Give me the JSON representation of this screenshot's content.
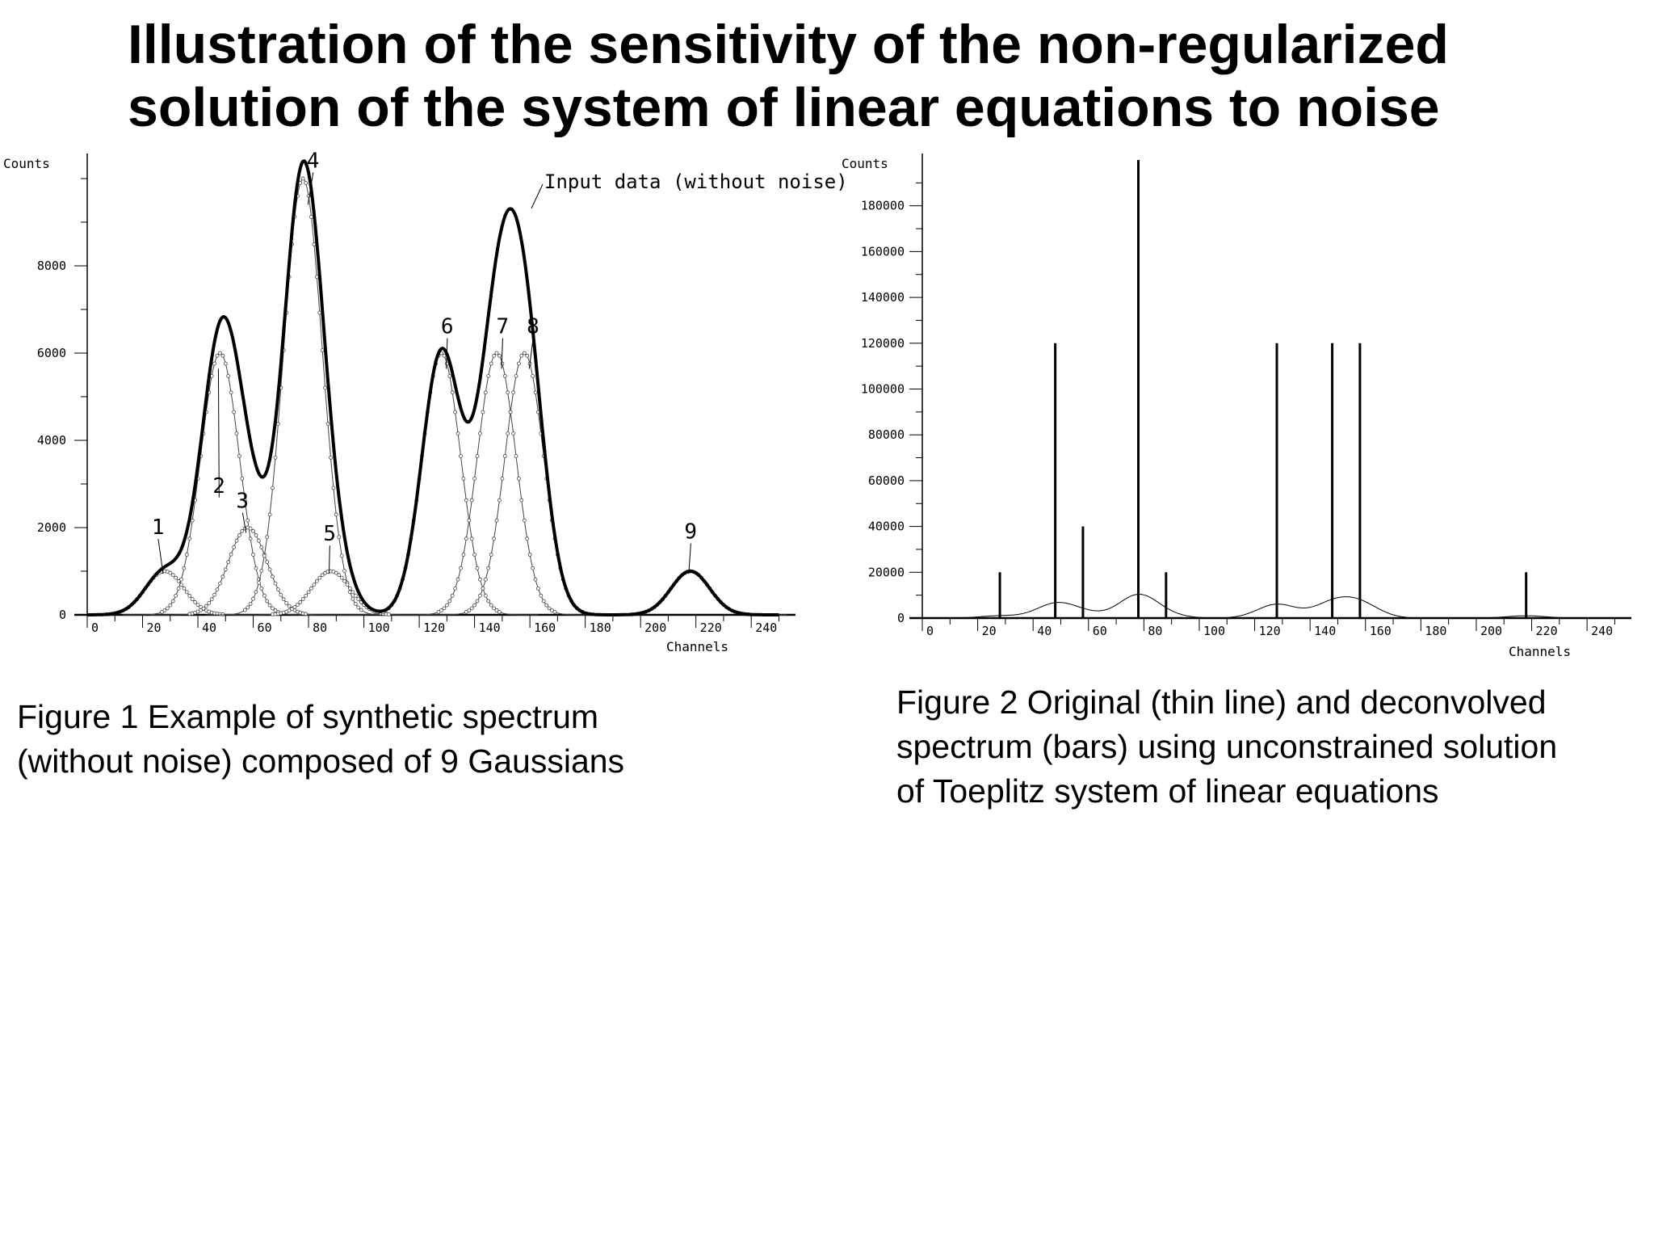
{
  "page": {
    "title_lines": [
      "Illustration of the sensitivity of the non-regularized",
      "solution of the system of linear equations to noise"
    ]
  },
  "figures": [
    {
      "caption_lines": [
        "Figure 1 Example of synthetic spectrum",
        "(without noise) composed of 9 Gaussians"
      ]
    },
    {
      "caption_lines": [
        "Figure 2 Original (thin line) and deconvolved",
        "spectrum (bars) using unconstrained solution",
        "of Toeplitz system of linear equations"
      ]
    }
  ],
  "chart_data": [
    {
      "type": "line",
      "xlabel": "Channels",
      "ylabel": "Counts",
      "xlim": [
        0,
        256
      ],
      "ylim": [
        0,
        10500
      ],
      "x_ticks": [
        0,
        20,
        40,
        60,
        80,
        100,
        120,
        140,
        160,
        180,
        200,
        220,
        240
      ],
      "y_ticks": [
        0,
        2000,
        4000,
        6000,
        8000
      ],
      "grid": false,
      "annotation": "Input data (without noise)",
      "components": [
        {
          "label": "1",
          "position": 28,
          "amplitude": 1000,
          "sigma": 7
        },
        {
          "label": "2",
          "position": 48,
          "amplitude": 6000,
          "sigma": 7
        },
        {
          "label": "3",
          "position": 58,
          "amplitude": 2000,
          "sigma": 7
        },
        {
          "label": "4",
          "position": 78,
          "amplitude": 10000,
          "sigma": 7
        },
        {
          "label": "5",
          "position": 88,
          "amplitude": 1000,
          "sigma": 7
        },
        {
          "label": "6",
          "position": 128,
          "amplitude": 6000,
          "sigma": 7
        },
        {
          "label": "7",
          "position": 148,
          "amplitude": 6000,
          "sigma": 7
        },
        {
          "label": "8",
          "position": 158,
          "amplitude": 6000,
          "sigma": 7
        },
        {
          "label": "9",
          "position": 218,
          "amplitude": 1000,
          "sigma": 7
        }
      ]
    },
    {
      "type": "bar",
      "xlabel": "Channels",
      "ylabel": "Counts",
      "xlim": [
        0,
        256
      ],
      "ylim": [
        0,
        200000
      ],
      "x_ticks": [
        0,
        20,
        40,
        60,
        80,
        100,
        120,
        140,
        160,
        180,
        200,
        220,
        240
      ],
      "y_ticks": [
        0,
        20000,
        40000,
        60000,
        80000,
        100000,
        120000,
        140000,
        160000,
        180000
      ],
      "grid": false,
      "bars": [
        {
          "x": 28,
          "value": 20000
        },
        {
          "x": 48,
          "value": 120000
        },
        {
          "x": 58,
          "value": 40000
        },
        {
          "x": 78,
          "value": 200000
        },
        {
          "x": 88,
          "value": 20000
        },
        {
          "x": 128,
          "value": 120000
        },
        {
          "x": 148,
          "value": 120000
        },
        {
          "x": 158,
          "value": 120000
        },
        {
          "x": 218,
          "value": 20000
        }
      ],
      "original_line": "sum of the 9 Gaussians of Figure 1"
    }
  ]
}
